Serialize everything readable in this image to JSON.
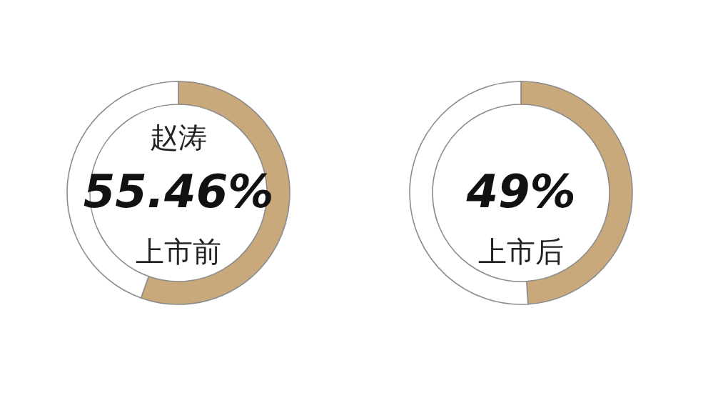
{
  "chart_data": [
    {
      "type": "donut",
      "categories": [
        null,
        null
      ],
      "values": [
        55.46,
        44.54
      ],
      "colors": [
        "#c9a97c",
        "#ffffff"
      ],
      "value_labels": [
        "55.46%",
        null
      ],
      "annotations": [
        "赵涛",
        "上市前"
      ]
    },
    {
      "type": "donut",
      "categories": [
        null,
        null
      ],
      "values": [
        49,
        51
      ],
      "colors": [
        "#c9a97c",
        "#ffffff"
      ],
      "value_labels": [
        "49%",
        null
      ],
      "annotations": [
        "上市后"
      ]
    }
  ]
}
